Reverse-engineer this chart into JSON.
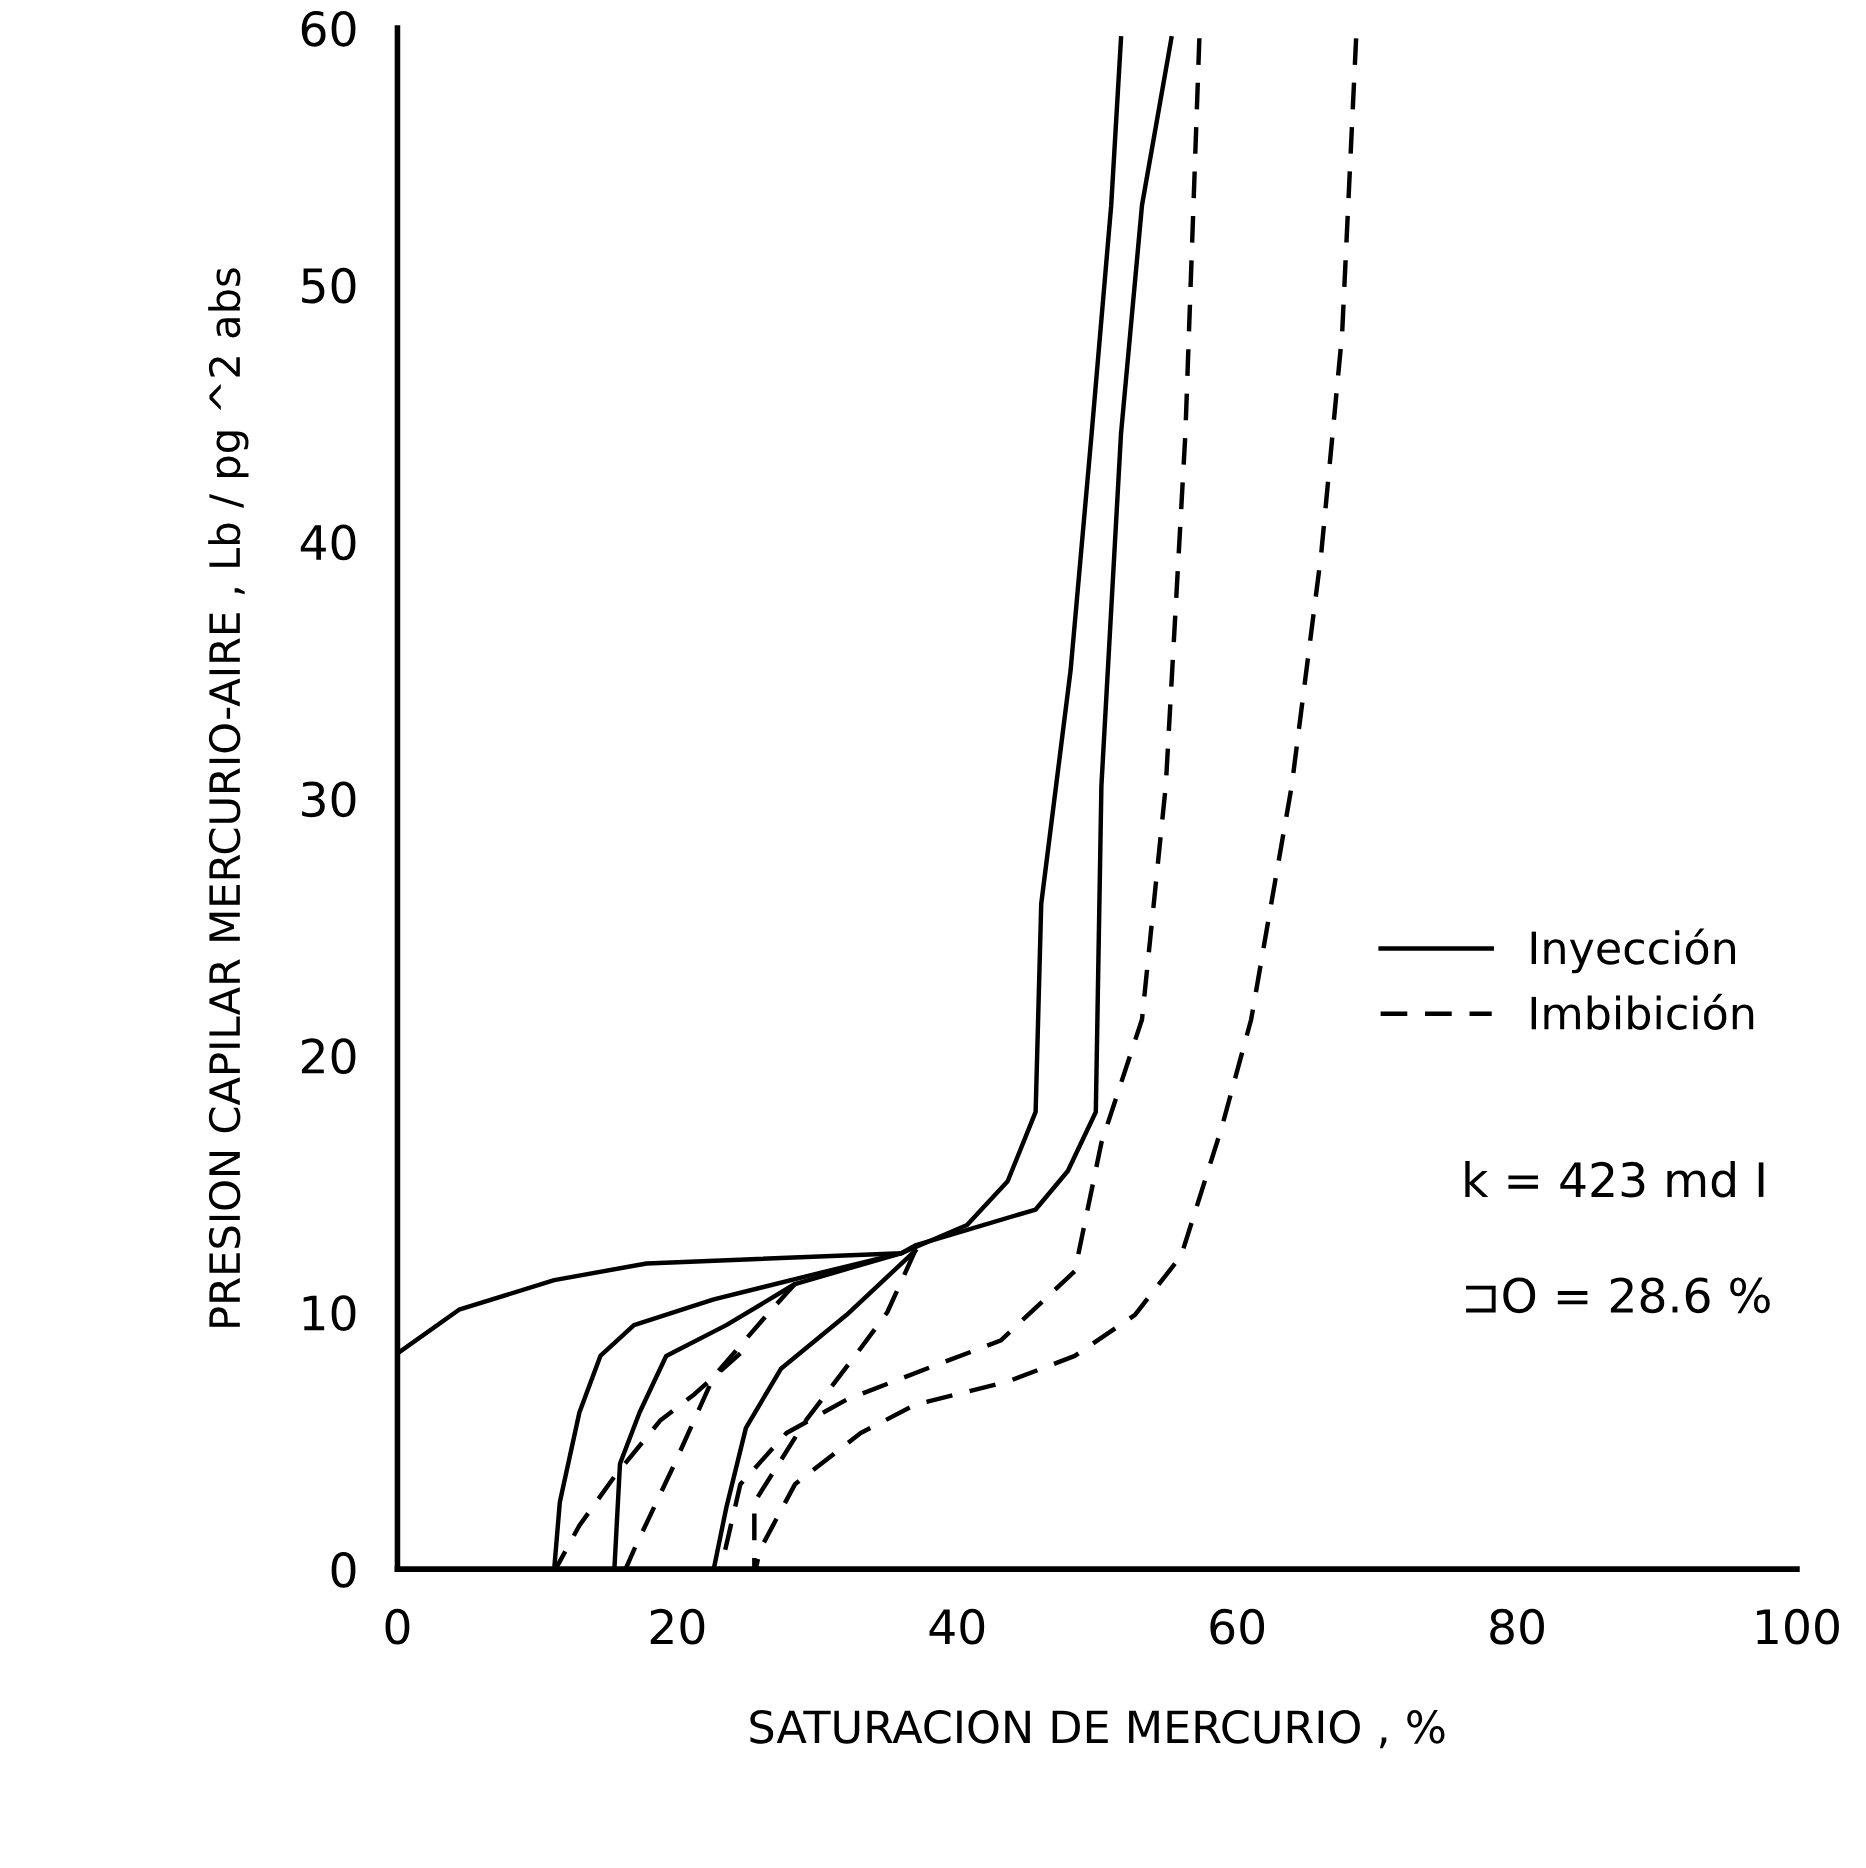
{
  "chart_data": {
    "type": "line",
    "xlabel": "SATURACION DE MERCURIO , %",
    "ylabel": "PRESION CAPILAR MERCURIO-AIRE , Lb / pg ^2 abs",
    "xlim": [
      0,
      100
    ],
    "ylim": [
      0,
      60
    ],
    "xticks": [
      0,
      20,
      40,
      60,
      80,
      100
    ],
    "yticks": [
      0,
      10,
      20,
      30,
      40,
      50,
      60
    ],
    "grid": false,
    "legend": "right",
    "marker": "none",
    "annotations": [
      "k = 423 md I",
      "⊐O = 28.6 %"
    ],
    "series": [
      {
        "name": "Inyección",
        "color": "#000000",
        "line_style": "solid",
        "x": [
          0,
          4.4,
          11.2,
          17.8,
          36,
          40.7,
          43.6,
          45.6,
          46,
          48.1,
          49.6,
          51,
          51.7
        ],
        "values": [
          8.4,
          10.1,
          11.25,
          11.9,
          12.3,
          13.4,
          15.1,
          17.8,
          25.9,
          35,
          44.2,
          53.1,
          59.6
        ]
      },
      {
        "color": "#000000",
        "line_style": "solid",
        "x": [
          11.2,
          11.6,
          13,
          14.5,
          16.9,
          22.6,
          29.2,
          36,
          37,
          45.6,
          47.9,
          49.9,
          50.3,
          51.7,
          53.2,
          55.3
        ],
        "values": [
          0,
          2.6,
          6.1,
          8.3,
          9.5,
          10.5,
          11.4,
          12.3,
          12.6,
          14,
          15.5,
          17.8,
          30.5,
          44.2,
          53.1,
          59.6
        ]
      },
      {
        "color": "#000000",
        "line_style": "solid",
        "x": [
          15.5,
          15.9,
          17.3,
          19.2,
          23.5,
          28.4,
          36
        ],
        "values": [
          0,
          4.1,
          6.1,
          8.3,
          9.5,
          11.1,
          12.3
        ]
      },
      {
        "color": "#000000",
        "line_style": "solid",
        "x": [
          22.6,
          23.5,
          24.9,
          27.4,
          32.1,
          37
        ],
        "values": [
          0,
          2.4,
          5.5,
          7.8,
          9.9,
          12.4
        ]
      },
      {
        "name": "Imbibición",
        "color": "#000000",
        "line_style": "dashed",
        "x": [
          68.5,
          67.5,
          66,
          63.9,
          61,
          58.9,
          56,
          52.7,
          48.4,
          43.6,
          37,
          33.1,
          28.4,
          25.9,
          25.6
        ],
        "values": [
          59.6,
          48.1,
          39.5,
          30.5,
          21.4,
          17.2,
          12.2,
          9.9,
          8.3,
          7.3,
          6.4,
          5.3,
          3.3,
          0.75,
          0
        ]
      },
      {
        "color": "#000000",
        "line_style": "dashed",
        "x": [
          57.3,
          56.3,
          54.9,
          53.2,
          50.3,
          48.4,
          43.1,
          37.8,
          32.1,
          27.8,
          24.5,
          23.1
        ],
        "values": [
          59.6,
          44.2,
          30.5,
          21.4,
          16.6,
          11.6,
          8.9,
          7.8,
          6.6,
          5.3,
          3.3,
          0
        ]
      },
      {
        "color": "#000000",
        "line_style": "dashed",
        "x": [
          37,
          35,
          33.1,
          29.2,
          25.5,
          25.5
        ],
        "values": [
          12.4,
          10,
          8.6,
          5.8,
          2.6,
          0
        ]
      },
      {
        "color": "#000000",
        "line_style": "dashed",
        "x": [
          28.4,
          26.4,
          22.6,
          19.8,
          16.9,
          16.3
        ],
        "values": [
          11.1,
          9.9,
          7.5,
          4.1,
          0.75,
          0
        ]
      },
      {
        "color": "#000000",
        "line_style": "dashed",
        "x": [
          24.5,
          21.2,
          18.8,
          15.5,
          13,
          11.3
        ],
        "values": [
          8.4,
          6.8,
          5.8,
          3.6,
          1.7,
          0
        ]
      }
    ]
  }
}
